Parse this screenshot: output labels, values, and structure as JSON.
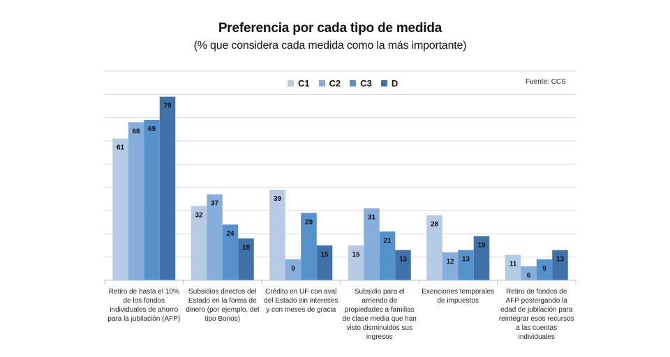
{
  "chart_data": {
    "type": "bar",
    "title": "Preferencia por cada tipo de medida",
    "subtitle": "(% que considera cada medida como la más importante)",
    "source": "Fuente: CCS",
    "categories": [
      "Retiro de hasta el 10% de los fondos individuales de ahorro para la jubilación (AFP)",
      "Subsidios directos del Estado en la forma de dinero (por ejemplo, del tipo Bonos)",
      "Crédito en UF con aval del Estado sin intereses y con meses de gracia",
      "Subsidio para el arriendo de propiedades a familias de clase media que han visto disminuidos sus ingresos",
      "Exenciones temporales de impuestos",
      "Retiro de fondos de AFP postergando la edad de jubilación para reintegrar esos recursos a las cuentas individuales"
    ],
    "series": [
      {
        "name": "C1",
        "color": "#b6cce6",
        "values": [
          61,
          32,
          39,
          15,
          28,
          11
        ]
      },
      {
        "name": "C2",
        "color": "#86aedc",
        "values": [
          68,
          37,
          9,
          31,
          12,
          6
        ]
      },
      {
        "name": "C3",
        "color": "#5592cb",
        "values": [
          69,
          24,
          29,
          21,
          13,
          9
        ]
      },
      {
        "name": "D",
        "color": "#3e72a8",
        "values": [
          79,
          18,
          15,
          13,
          19,
          13
        ]
      }
    ],
    "ylim": [
      0,
      90
    ],
    "grid": true,
    "legend_position": "top-center",
    "xlabel": "",
    "ylabel": ""
  }
}
